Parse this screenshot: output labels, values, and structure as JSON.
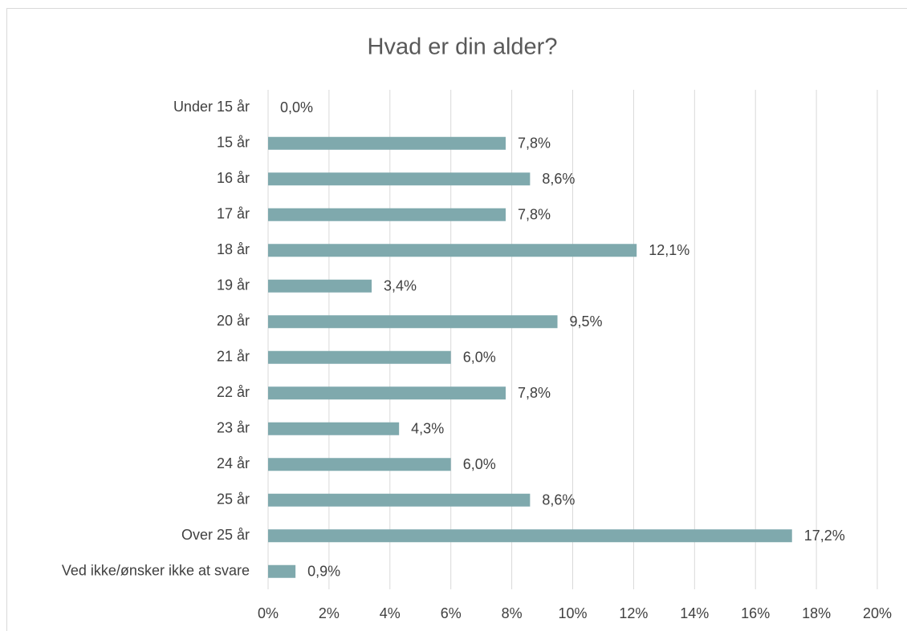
{
  "chart_data": {
    "type": "bar",
    "orientation": "horizontal",
    "title": "Hvad er din alder?",
    "categories": [
      "Under 15 år",
      "15 år",
      "16 år",
      "17 år",
      "18 år",
      "19 år",
      "20 år",
      "21 år",
      "22 år",
      "23 år",
      "24 år",
      "25 år",
      "Over 25 år",
      "Ved ikke/ønsker ikke at svare"
    ],
    "values": [
      0,
      7.8,
      8.6,
      7.8,
      12.1,
      3.4,
      9.5,
      6.0,
      7.8,
      4.3,
      6.0,
      8.6,
      17.2,
      0.9
    ],
    "value_labels": [
      "0,0%",
      "7,8%",
      "8,6%",
      "7,8%",
      "12,1%",
      "3,4%",
      "9,5%",
      "6,0%",
      "7,8%",
      "4,3%",
      "6,0%",
      "8,6%",
      "17,2%",
      "0,9%"
    ],
    "color": "#7fa9ad",
    "xlim": [
      0,
      20
    ],
    "xticks": [
      {
        "value": 0,
        "label": "0%"
      },
      {
        "value": 2,
        "label": "2%"
      },
      {
        "value": 4,
        "label": "4%"
      },
      {
        "value": 6,
        "label": "6%"
      },
      {
        "value": 8,
        "label": "8%"
      },
      {
        "value": 10,
        "label": "10%"
      },
      {
        "value": 12,
        "label": "12%"
      },
      {
        "value": 14,
        "label": "14%"
      },
      {
        "value": 16,
        "label": "16%"
      },
      {
        "value": 18,
        "label": "18%"
      },
      {
        "value": 20,
        "label": "20%"
      }
    ],
    "grid": true
  }
}
